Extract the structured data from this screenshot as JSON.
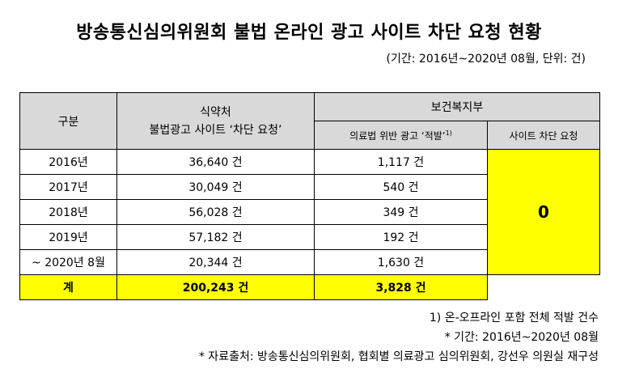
{
  "title": "방송통신심의위원회 불법 온라인 광고 사이트 차단 요청 현황",
  "period": "(기간: 2016년~2020년 08월, 단위: 건)",
  "table": {
    "headers": {
      "category": "구분",
      "mfds_line1": "식약처",
      "mfds_line2": "불법광고 사이트 ‘차단 요청’",
      "mohw": "보건복지부",
      "mohw_sub1": "의료법 위반 광고 ‘적발’",
      "mohw_sub1_sup": "1)",
      "mohw_sub2": "사이트 차단 요청"
    },
    "rows": [
      {
        "year": "2016년",
        "mfds": "36,640 건",
        "mohw": "1,117 건"
      },
      {
        "year": "2017년",
        "mfds": "30,049 건",
        "mohw": "540 건"
      },
      {
        "year": "2018년",
        "mfds": "56,028 건",
        "mohw": "349 건"
      },
      {
        "year": "2019년",
        "mfds": "57,182 건",
        "mohw": "192 건"
      },
      {
        "year": "~ 2020년 8월",
        "mfds": "20,344 건",
        "mohw": "1,630 건"
      }
    ],
    "block_value": "0",
    "total": {
      "label": "계",
      "mfds": "200,243 건",
      "mohw": "3,828 건"
    }
  },
  "notes": {
    "n1": "1) 온-오프라인 포함 전체 적발 건수",
    "n2": "* 기간: 2016년~2020년 08월",
    "n3": "* 자료출처: 방송통신심의위원회, 협회별 의료광고 심의위원회, 강선우 의원실 재구성"
  },
  "colors": {
    "header_bg": "#d9d9d9",
    "highlight": "#ffff00"
  }
}
